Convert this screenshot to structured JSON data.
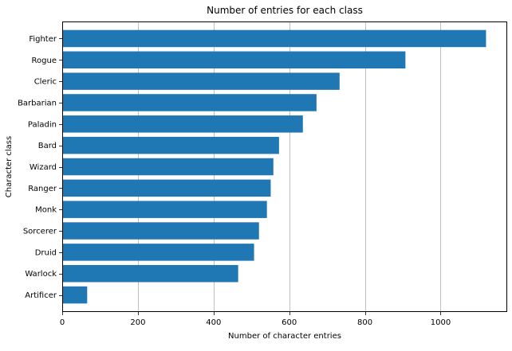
{
  "chart_data": {
    "type": "bar",
    "orientation": "horizontal",
    "title": "Number of entries for each class",
    "xlabel": "Number of character entries",
    "ylabel": "Character class",
    "categories": [
      "Fighter",
      "Rogue",
      "Cleric",
      "Barbarian",
      "Paladin",
      "Bard",
      "Wizard",
      "Ranger",
      "Monk",
      "Sorcerer",
      "Druid",
      "Warlock",
      "Artificer"
    ],
    "values": [
      1120,
      907,
      733,
      672,
      636,
      573,
      558,
      551,
      541,
      520,
      507,
      465,
      66
    ],
    "xlim": [
      0,
      1176
    ],
    "xticks": [
      0,
      200,
      400,
      600,
      800,
      1000
    ],
    "grid": "vertical",
    "bar_color": "#1f77b4",
    "grid_color": "#b0b0b0"
  }
}
